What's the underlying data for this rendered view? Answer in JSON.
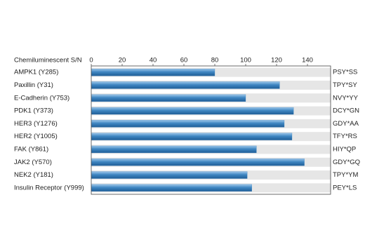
{
  "chart_data": {
    "type": "bar",
    "orientation": "horizontal",
    "x_label": "Chemiluminescent S/N",
    "categories": [
      "AMPK1 (Y285)",
      "Paxillin (Y31)",
      "E-Cadherin (Y753)",
      "PDK1 (Y373)",
      "HER3 (Y1276)",
      "HER2 (Y1005)",
      "FAK (Y861)",
      "JAK2 (Y570)",
      "NEK2 (Y181)",
      "Insulin Receptor (Y999)"
    ],
    "values": [
      80,
      122,
      100,
      131,
      125,
      130,
      107,
      138,
      101,
      104
    ],
    "sequences": [
      "PSY*SS",
      "TPY*SY",
      "NVY*YY",
      "DCY*GN",
      "GDY*AA",
      "TFY*RS",
      "HIY*QP",
      "GDY*GQ",
      "TPY*YM",
      "PEY*LS"
    ],
    "color": "#3f86c2",
    "track_color": "#e6e6e6",
    "xlim": [
      0,
      155
    ],
    "xticks": [
      0,
      20,
      40,
      60,
      80,
      100,
      120,
      140
    ]
  }
}
